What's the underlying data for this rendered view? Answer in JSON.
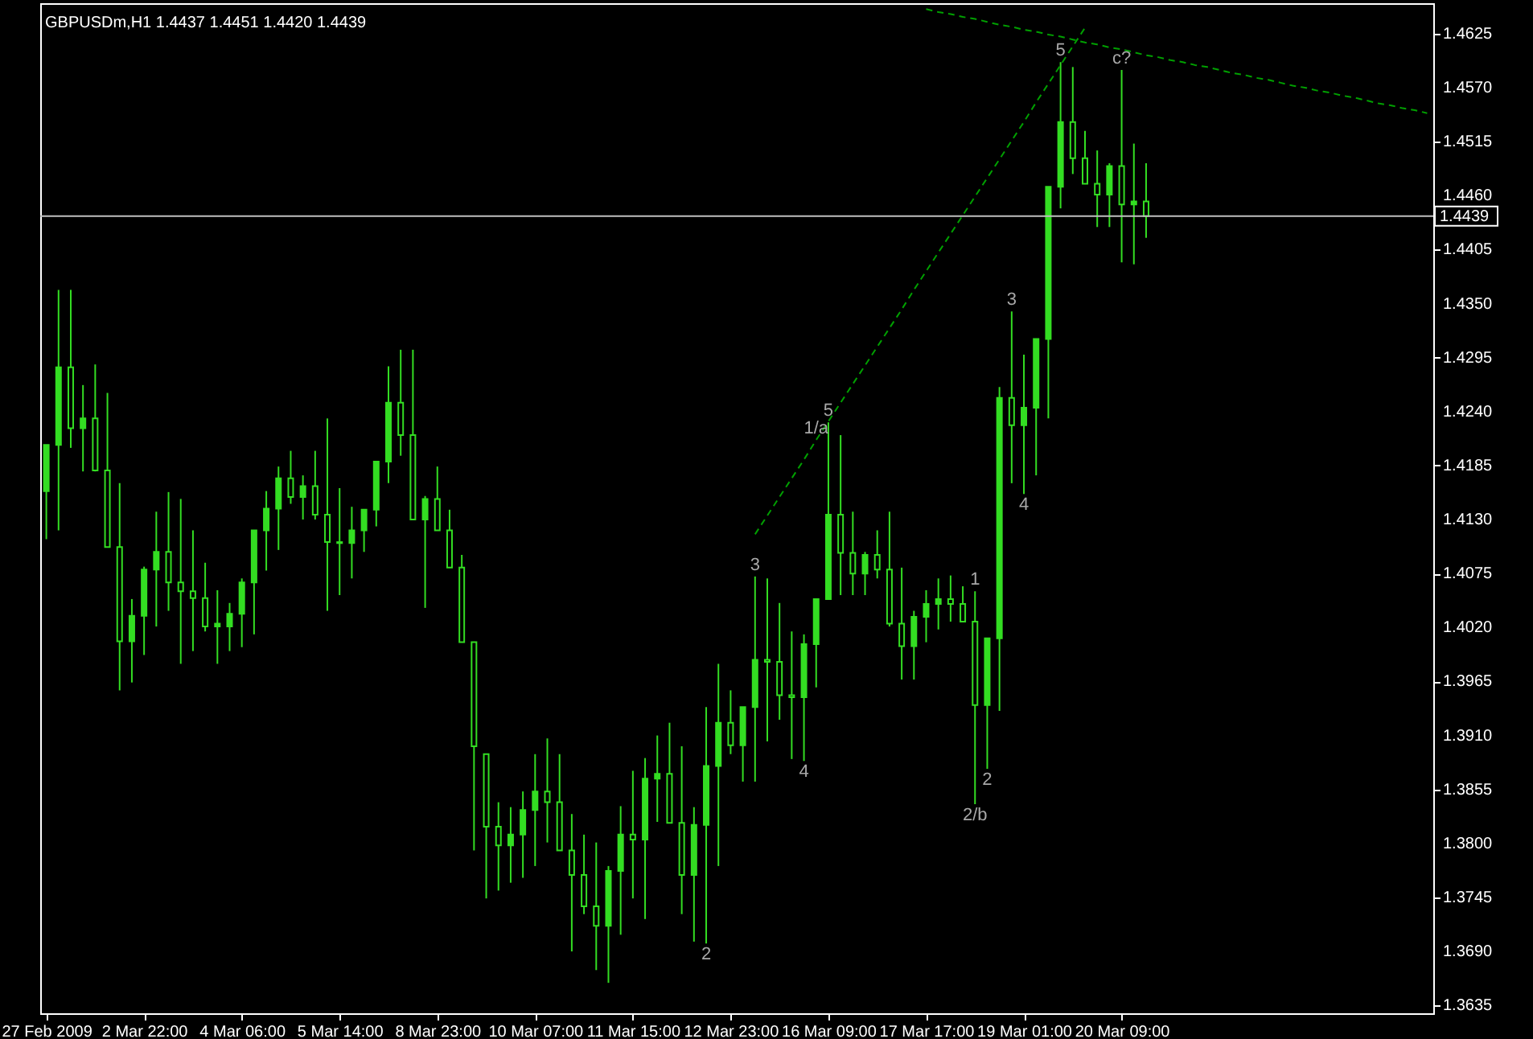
{
  "chart_data": {
    "type": "candlestick",
    "title": "GBPUSDm,H1 1.4437 1.4451 1.4420 1.4439",
    "color": "#33dd22",
    "categories": [
      "27 Feb 2009",
      null,
      null,
      null,
      null,
      null,
      null,
      null,
      "2 Mar 22:00",
      null,
      null,
      null,
      null,
      null,
      null,
      null,
      "4 Mar 06:00",
      null,
      null,
      null,
      null,
      null,
      null,
      null,
      "5 Mar 14:00",
      null,
      null,
      null,
      null,
      null,
      null,
      null,
      "8 Mar 23:00",
      null,
      null,
      null,
      null,
      null,
      null,
      null,
      "10 Mar 07:00",
      null,
      null,
      null,
      null,
      null,
      null,
      null,
      "11 Mar 15:00",
      null,
      null,
      null,
      null,
      null,
      null,
      null,
      "12 Mar 23:00",
      null,
      null,
      null,
      null,
      null,
      null,
      null,
      "16 Mar 09:00",
      null,
      null,
      null,
      null,
      null,
      null,
      null,
      "17 Mar 17:00",
      null,
      null,
      null,
      null,
      null,
      null,
      null,
      "19 Mar 01:00",
      null,
      null,
      null,
      null,
      null,
      null,
      null,
      "20 Mar 09:00",
      null,
      null,
      null,
      null,
      null,
      null,
      null,
      null,
      null,
      null,
      null,
      null,
      null,
      null,
      null,
      null,
      null,
      null,
      null,
      null,
      null,
      null,
      null,
      null,
      null
    ],
    "ohlc": [
      [
        1.4159,
        1.4206,
        1.411,
        1.4206
      ],
      [
        1.4206,
        1.4364,
        1.4119,
        1.4285
      ],
      [
        1.4285,
        1.4364,
        1.4203,
        1.4223
      ],
      [
        1.4223,
        1.4267,
        1.4179,
        1.4233
      ],
      [
        1.4233,
        1.4288,
        1.4179,
        1.418
      ],
      [
        1.418,
        1.4259,
        1.4102,
        1.4102
      ],
      [
        1.4102,
        1.4167,
        1.3956,
        1.4006
      ],
      [
        1.4006,
        1.4049,
        1.3964,
        1.4032
      ],
      [
        1.4032,
        1.4082,
        1.3992,
        1.4079
      ],
      [
        1.4079,
        1.4138,
        1.4021,
        1.4097
      ],
      [
        1.4097,
        1.4158,
        1.4037,
        1.4066
      ],
      [
        1.4066,
        1.4151,
        1.3983,
        1.4057
      ],
      [
        1.4057,
        1.4119,
        1.3996,
        1.405
      ],
      [
        1.405,
        1.4086,
        1.4016,
        1.4021
      ],
      [
        1.4021,
        1.4058,
        1.3983,
        1.4024
      ],
      [
        1.4021,
        1.4045,
        1.3996,
        1.4034
      ],
      [
        1.4034,
        1.407,
        1.4,
        1.4066
      ],
      [
        1.4066,
        1.4119,
        1.4013,
        1.4119
      ],
      [
        1.4119,
        1.4159,
        1.4078,
        1.4141
      ],
      [
        1.4141,
        1.4184,
        1.4099,
        1.4172
      ],
      [
        1.4172,
        1.42,
        1.4146,
        1.4153
      ],
      [
        1.4153,
        1.4175,
        1.413,
        1.4164
      ],
      [
        1.4164,
        1.42,
        1.413,
        1.4135
      ],
      [
        1.4135,
        1.4233,
        1.4037,
        1.4107
      ],
      [
        1.4107,
        1.4162,
        1.4053,
        1.4106
      ],
      [
        1.4106,
        1.4143,
        1.407,
        1.4119
      ],
      [
        1.4119,
        1.414,
        1.4097,
        1.414
      ],
      [
        1.414,
        1.4189,
        1.4123,
        1.4189
      ],
      [
        1.4189,
        1.4286,
        1.4167,
        1.4249
      ],
      [
        1.4249,
        1.4303,
        1.4195,
        1.4216
      ],
      [
        1.4216,
        1.4303,
        1.413,
        1.413
      ],
      [
        1.413,
        1.4154,
        1.404,
        1.4151
      ],
      [
        1.4151,
        1.4184,
        1.4119,
        1.4119
      ],
      [
        1.4119,
        1.414,
        1.4081,
        1.4081
      ],
      [
        1.4081,
        1.4094,
        1.4005,
        1.4005
      ],
      [
        1.4005,
        1.4005,
        1.3793,
        1.3899
      ],
      [
        1.3891,
        1.3891,
        1.3744,
        1.3817
      ],
      [
        1.3817,
        1.3842,
        1.3752,
        1.3798
      ],
      [
        1.3798,
        1.3837,
        1.376,
        1.3809
      ],
      [
        1.3809,
        1.3853,
        1.3765,
        1.3834
      ],
      [
        1.3834,
        1.3891,
        1.3777,
        1.3853
      ],
      [
        1.3853,
        1.3907,
        1.3801,
        1.3842
      ],
      [
        1.3842,
        1.3891,
        1.3793,
        1.3793
      ],
      [
        1.3793,
        1.383,
        1.369,
        1.3768
      ],
      [
        1.3768,
        1.3809,
        1.3728,
        1.3736
      ],
      [
        1.3736,
        1.3801,
        1.3671,
        1.3716
      ],
      [
        1.3716,
        1.3777,
        1.3658,
        1.3772
      ],
      [
        1.3772,
        1.3838,
        1.3707,
        1.3809
      ],
      [
        1.3809,
        1.3874,
        1.3744,
        1.3804
      ],
      [
        1.3804,
        1.3887,
        1.3723,
        1.3866
      ],
      [
        1.3866,
        1.391,
        1.3822,
        1.3871
      ],
      [
        1.3871,
        1.3923,
        1.3821,
        1.3821
      ],
      [
        1.3821,
        1.3899,
        1.3728,
        1.3768
      ],
      [
        1.3768,
        1.3837,
        1.37,
        1.3819
      ],
      [
        1.3819,
        1.3939,
        1.3698,
        1.3879
      ],
      [
        1.3879,
        1.3983,
        1.3777,
        1.3923
      ],
      [
        1.3923,
        1.3956,
        1.3891,
        1.39
      ],
      [
        1.39,
        1.3939,
        1.3863,
        1.3939
      ],
      [
        1.3939,
        1.4072,
        1.3863,
        1.3987
      ],
      [
        1.3987,
        1.407,
        1.3904,
        1.3985
      ],
      [
        1.3985,
        1.4045,
        1.3926,
        1.3951
      ],
      [
        1.3951,
        1.4016,
        1.3886,
        1.3949
      ],
      [
        1.3949,
        1.4013,
        1.3884,
        1.4003
      ],
      [
        1.4003,
        1.4049,
        1.3959,
        1.4049
      ],
      [
        1.4049,
        1.4229,
        1.4049,
        1.4135
      ],
      [
        1.4135,
        1.4216,
        1.4053,
        1.4096
      ],
      [
        1.4096,
        1.4138,
        1.4053,
        1.4075
      ],
      [
        1.4075,
        1.4097,
        1.4053,
        1.4094
      ],
      [
        1.4094,
        1.4119,
        1.407,
        1.4079
      ],
      [
        1.4079,
        1.4138,
        1.4021,
        1.4024
      ],
      [
        1.4024,
        1.4081,
        1.3967,
        1.4001
      ],
      [
        1.4001,
        1.4037,
        1.3967,
        1.4031
      ],
      [
        1.4031,
        1.4058,
        1.4005,
        1.4044
      ],
      [
        1.4044,
        1.407,
        1.4018,
        1.4049
      ],
      [
        1.4049,
        1.4073,
        1.4026,
        1.4044
      ],
      [
        1.4044,
        1.4062,
        1.4026,
        1.4026
      ],
      [
        1.4026,
        1.4057,
        1.384,
        1.3941
      ],
      [
        1.3941,
        1.4009,
        1.3876,
        1.4009
      ],
      [
        1.4009,
        1.4265,
        1.3935,
        1.4254
      ],
      [
        1.4254,
        1.4342,
        1.4167,
        1.4226
      ],
      [
        1.4226,
        1.4298,
        1.4156,
        1.4244
      ],
      [
        1.4244,
        1.4314,
        1.4175,
        1.4314
      ],
      [
        1.4314,
        1.4469,
        1.4233,
        1.4469
      ],
      [
        1.4469,
        1.4596,
        1.4447,
        1.4535
      ],
      [
        1.4535,
        1.4591,
        1.4482,
        1.4498
      ],
      [
        1.4498,
        1.4526,
        1.4472,
        1.4472
      ],
      [
        1.4472,
        1.4506,
        1.4428,
        1.4461
      ],
      [
        1.4461,
        1.4493,
        1.4428,
        1.449
      ],
      [
        1.449,
        1.4588,
        1.4392,
        1.4451
      ],
      [
        1.4451,
        1.4513,
        1.439,
        1.4454
      ],
      [
        1.4454,
        1.4493,
        1.4417,
        1.4439
      ],
      null,
      null,
      null,
      null,
      null,
      null,
      null,
      null,
      null,
      null,
      null,
      null,
      null,
      null,
      null,
      null,
      null,
      null,
      null,
      null,
      null,
      null,
      null
    ],
    "series": [
      {
        "type": "line",
        "color": "#00a000",
        "line_style": "dashed",
        "values": [
          null,
          null,
          null,
          null,
          null,
          null,
          null,
          null,
          null,
          null,
          null,
          null,
          null,
          null,
          null,
          null,
          null,
          null,
          null,
          null,
          null,
          null,
          null,
          null,
          null,
          null,
          null,
          null,
          null,
          null,
          null,
          null,
          null,
          null,
          null,
          null,
          null,
          null,
          null,
          null,
          null,
          null,
          null,
          null,
          null,
          null,
          null,
          null,
          null,
          null,
          null,
          null,
          null,
          null,
          null,
          null,
          null,
          null,
          1.4115,
          1.4134,
          1.4153,
          1.4172,
          1.4191,
          1.4211,
          1.423,
          1.4249,
          1.4268,
          1.4287,
          1.4306,
          1.4325,
          1.4344,
          1.4364,
          1.4383,
          1.4402,
          1.4421,
          1.444,
          1.4459,
          1.4478,
          1.4497,
          1.4516,
          1.4535,
          1.4555,
          1.4574,
          1.4593,
          1.4612,
          1.4631,
          null,
          null,
          null,
          null,
          null,
          null,
          null,
          null,
          null,
          null,
          null,
          null,
          null,
          null,
          null,
          null,
          null,
          null,
          null,
          null,
          null,
          null,
          null,
          null,
          null,
          null,
          null,
          null
        ]
      },
      {
        "type": "line",
        "color": "#00a000",
        "line_style": "dashed",
        "values": [
          null,
          null,
          null,
          null,
          null,
          null,
          null,
          null,
          null,
          null,
          null,
          null,
          null,
          null,
          null,
          null,
          null,
          null,
          null,
          null,
          null,
          null,
          null,
          null,
          null,
          null,
          null,
          null,
          null,
          null,
          null,
          null,
          null,
          null,
          null,
          null,
          null,
          null,
          null,
          null,
          null,
          null,
          null,
          null,
          null,
          null,
          null,
          null,
          null,
          null,
          null,
          null,
          null,
          null,
          null,
          null,
          null,
          null,
          null,
          null,
          null,
          null,
          null,
          null,
          null,
          null,
          null,
          null,
          null,
          null,
          null,
          null,
          1.465,
          1.4647,
          1.4645,
          1.4642,
          1.464,
          1.4637,
          1.4634,
          1.4632,
          1.4629,
          1.4627,
          1.4624,
          1.4622,
          1.4619,
          1.4616,
          1.4614,
          1.4611,
          1.4609,
          1.4606,
          1.4603,
          1.4601,
          1.4598,
          1.4596,
          1.4593,
          1.4591,
          1.4588,
          1.4585,
          1.4583,
          1.458,
          1.4578,
          1.4575,
          1.4572,
          1.457,
          1.4567,
          1.4565,
          1.4562,
          1.456,
          1.4557,
          1.4554,
          1.4552,
          1.4549,
          1.4547,
          1.4544
        ]
      }
    ],
    "ylim": [
      1.3627,
      1.4656
    ],
    "yticks": [
      {
        "value": 1.3635,
        "label": "1.3635"
      },
      {
        "value": 1.369,
        "label": "1.3690"
      },
      {
        "value": 1.3745,
        "label": "1.3745"
      },
      {
        "value": 1.38,
        "label": "1.3800"
      },
      {
        "value": 1.3855,
        "label": "1.3855"
      },
      {
        "value": 1.391,
        "label": "1.3910"
      },
      {
        "value": 1.3965,
        "label": "1.3965"
      },
      {
        "value": 1.402,
        "label": "1.4020"
      },
      {
        "value": 1.4075,
        "label": "1.4075"
      },
      {
        "value": 1.413,
        "label": "1.4130"
      },
      {
        "value": 1.4185,
        "label": "1.4185"
      },
      {
        "value": 1.424,
        "label": "1.4240"
      },
      {
        "value": 1.4295,
        "label": "1.4295"
      },
      {
        "value": 1.435,
        "label": "1.4350"
      },
      {
        "value": 1.4405,
        "label": "1.4405"
      },
      {
        "value": 1.446,
        "label": "1.4460"
      },
      {
        "value": 1.4515,
        "label": "1.4515"
      },
      {
        "value": 1.457,
        "label": "1.4570"
      },
      {
        "value": 1.4625,
        "label": "1.4625"
      }
    ],
    "ref_lines": [
      {
        "axis": "y",
        "value": 1.4439,
        "label": "1.4439",
        "color": "#c0c0c0"
      }
    ],
    "annotations": [
      {
        "text": "5",
        "y": 1.4596
      },
      {
        "text": "c?",
        "y": 1.4588
      },
      {
        "text": "1/a",
        "y": 1.4211
      },
      {
        "text": "5",
        "y": 1.4229
      },
      {
        "text": "3",
        "y": 1.4072
      },
      {
        "text": "4",
        "y": 1.3884
      },
      {
        "text": "2",
        "y": 1.3698
      },
      {
        "text": "3",
        "y": 1.4342
      },
      {
        "text": "4",
        "y": 1.4156
      },
      {
        "text": "1",
        "y": 1.4057
      },
      {
        "text": "2",
        "y": 1.3876
      },
      {
        "text": "2/b",
        "y": 1.384
      }
    ]
  }
}
